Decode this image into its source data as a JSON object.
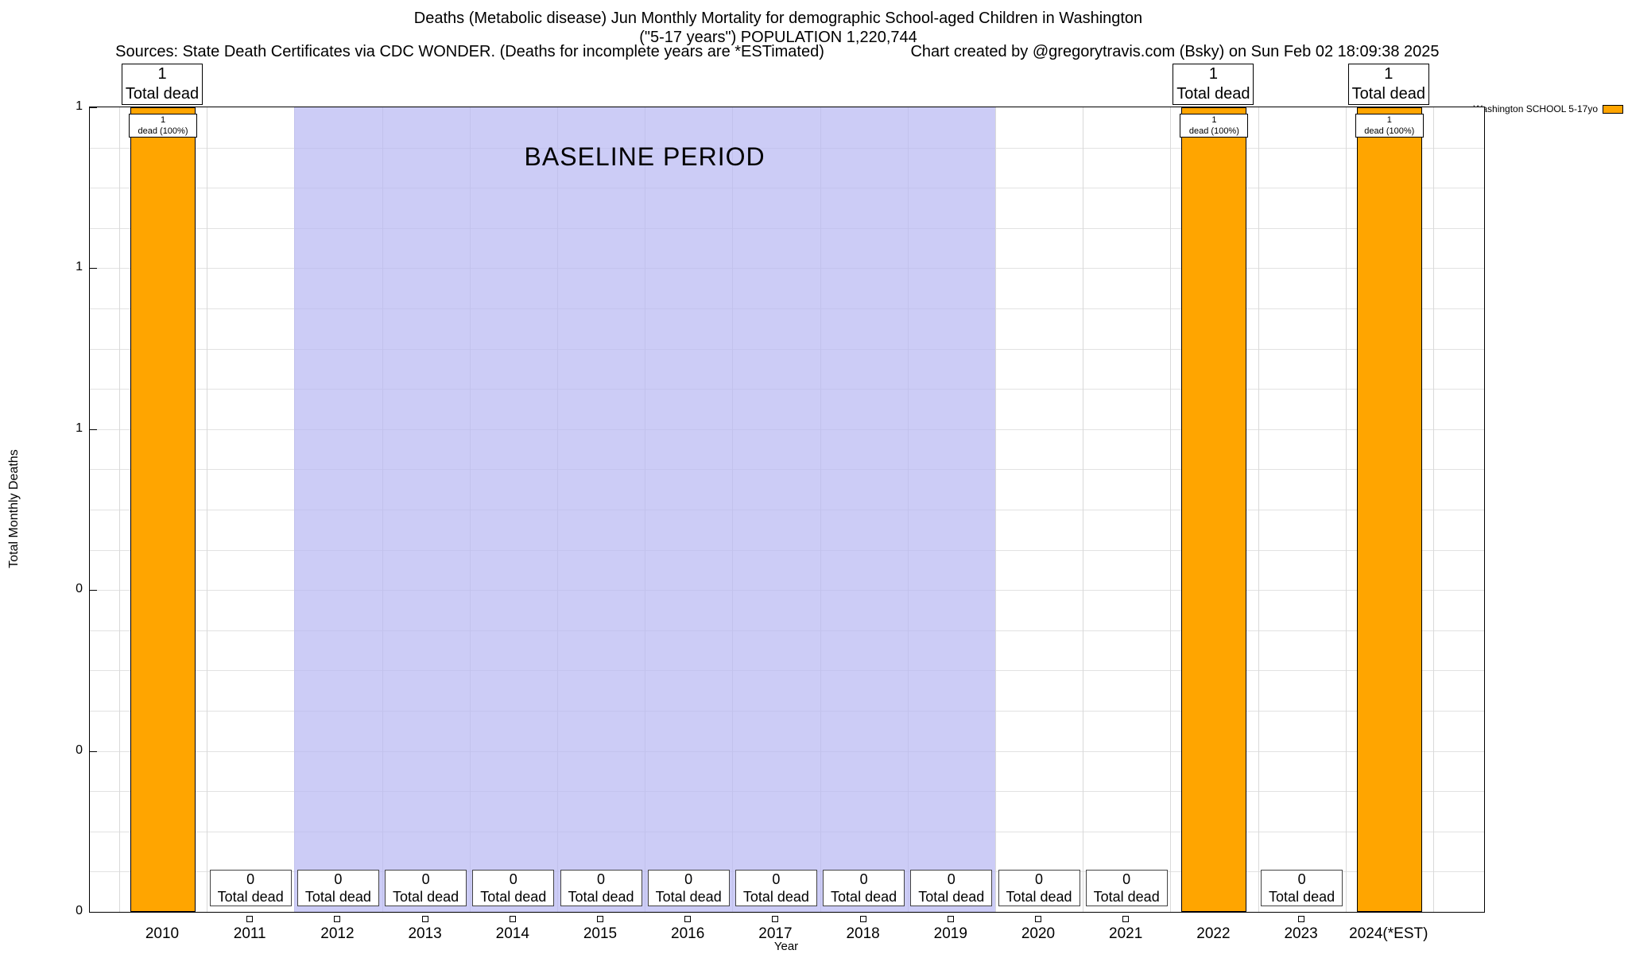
{
  "title": {
    "line1": "Deaths (Metabolic disease) Jun Monthly Mortality for demographic School-aged Children in Washington",
    "line2": "(\"5-17 years\") POPULATION 1,220,744",
    "sources": "Sources: State Death Certificates via CDC WONDER. (Deaths for incomplete years are *ESTimated)",
    "credit": "Chart created by @gregorytravis.com (Bsky) on Sun Feb 02 18:09:38 2025"
  },
  "legend": {
    "label": "Washington SCHOOL 5-17yo",
    "color": "#FFA500"
  },
  "axes": {
    "ylabel": "Total Monthly Deaths",
    "xlabel": "Year",
    "yticks": [
      {
        "v": 1.0,
        "label": "1"
      },
      {
        "v": 0.8,
        "label": "1"
      },
      {
        "v": 0.6,
        "label": "1"
      },
      {
        "v": 0.4,
        "label": "0"
      },
      {
        "v": 0.2,
        "label": "0"
      },
      {
        "v": 0.0,
        "label": "0"
      }
    ]
  },
  "baseline": {
    "label": "BASELINE PERIOD",
    "start_year": "2012",
    "end_year": "2019",
    "color": "#b9b9f2"
  },
  "chart_data": {
    "type": "bar",
    "title": "Deaths (Metabolic disease) Jun Monthly Mortality for demographic School-aged Children in Washington (\"5-17 years\") POPULATION 1,220,744",
    "xlabel": "Year",
    "ylabel": "Total Monthly Deaths",
    "ylim": [
      0,
      1
    ],
    "grid": true,
    "legend_position": "top-right",
    "legend_entries": [
      "Washington SCHOOL 5-17yo"
    ],
    "categories": [
      "2010",
      "2011",
      "2012",
      "2013",
      "2014",
      "2015",
      "2016",
      "2017",
      "2018",
      "2019",
      "2020",
      "2021",
      "2022",
      "2023",
      "2024(*EST)"
    ],
    "values": [
      1,
      0,
      0,
      0,
      0,
      0,
      0,
      0,
      0,
      0,
      0,
      0,
      1,
      0,
      1
    ],
    "bar_color": "#FFA500",
    "baseline_period": [
      "2012",
      "2019"
    ],
    "labels": {
      "total_dead": "Total dead",
      "dead_pct": "dead (100%)"
    }
  }
}
